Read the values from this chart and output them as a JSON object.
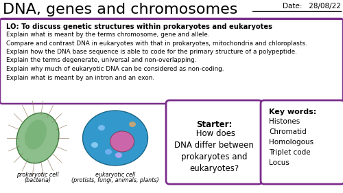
{
  "title": "DNA, genes and chromosomes",
  "date_label": "Date:   28/08/22",
  "lo_bold": "LO: To discuss genetic structures within prokaryotes and eukaryotes",
  "lo_points": [
    "Explain what is meant by the terms chromosome, gene and allele.",
    "Compare and contrast DNA in eukaryotes with that in prokaryotes, mitochondria and chloroplasts.",
    "Explain how the DNA base sequence is able to code for the primary structure of a polypeptide.",
    "Explain the terms degenerate, universal and non-overlapping.",
    "Explain why much of eukaryotic DNA can be considered as non-coding.",
    "Explain what is meant by an intron and an exon."
  ],
  "prokaryote_label1": "prokaryotic cell",
  "prokaryote_label2": "(bacteria)",
  "eukaryote_label1": "eukaryotic cell",
  "eukaryote_label2": "(protists, fungi, animals, plants)",
  "starter_bold": "Starter:",
  "starter_rest": " How does\nDNA differ between\nprokaryotes and\neukaryotes?",
  "keywords_title": "Key words:",
  "keywords": [
    "Histones",
    "Chromatid",
    "Homologous",
    "Triplet code",
    "Locus"
  ],
  "bg_color": "#ffffff",
  "border_color": "#7b2d8b",
  "title_color": "#000000",
  "text_color": "#000000",
  "title_fontsize": 16,
  "lo_bold_fontsize": 7.2,
  "lo_text_fontsize": 6.4,
  "date_fontsize": 7.5,
  "starter_fontsize": 8.5,
  "kw_title_fontsize": 8,
  "kw_fontsize": 7.5,
  "label_fontsize": 5.8
}
